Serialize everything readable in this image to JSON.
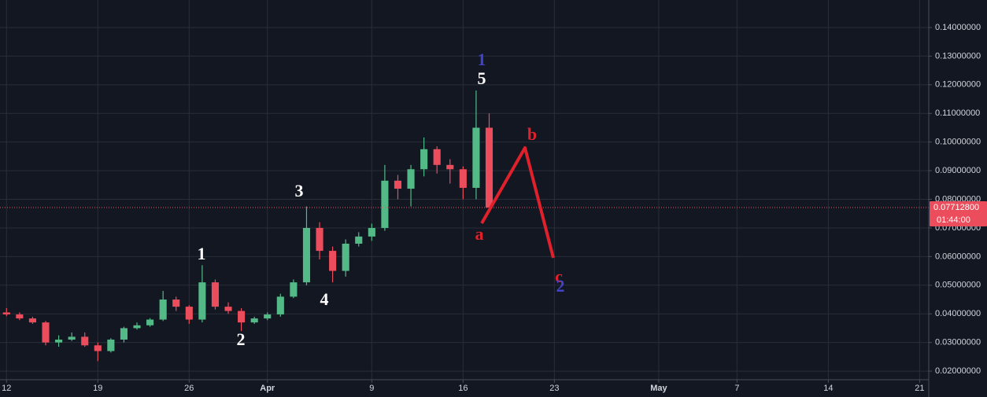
{
  "chart_data": {
    "type": "candlestick",
    "x": [
      0,
      1,
      2,
      3,
      4,
      5,
      6,
      7,
      8,
      9,
      10,
      11,
      12,
      13,
      14,
      15,
      16,
      17,
      18,
      19,
      20,
      21,
      22,
      23,
      24,
      25,
      26,
      27,
      28,
      29,
      30,
      31,
      32,
      33,
      34,
      35,
      36,
      37
    ],
    "open": [
      0.0405,
      0.0398,
      0.0384,
      0.037,
      0.03,
      0.031,
      0.032,
      0.029,
      0.027,
      0.031,
      0.035,
      0.036,
      0.038,
      0.045,
      0.0425,
      0.038,
      0.051,
      0.0425,
      0.041,
      0.037,
      0.0384,
      0.0398,
      0.046,
      0.051,
      0.07,
      0.062,
      0.055,
      0.0645,
      0.067,
      0.07,
      0.0865,
      0.0837,
      0.0905,
      0.0975,
      0.092,
      0.0905,
      0.084,
      0.105
    ],
    "high": [
      0.042,
      0.0405,
      0.039,
      0.0375,
      0.0325,
      0.0335,
      0.0335,
      0.03,
      0.0315,
      0.0355,
      0.037,
      0.0385,
      0.048,
      0.046,
      0.043,
      0.057,
      0.052,
      0.044,
      0.042,
      0.039,
      0.0405,
      0.047,
      0.052,
      0.0775,
      0.072,
      0.0635,
      0.066,
      0.0685,
      0.0715,
      0.092,
      0.0885,
      0.092,
      0.1016,
      0.0985,
      0.094,
      0.0915,
      0.118,
      0.11
    ],
    "low": [
      0.0392,
      0.0378,
      0.0365,
      0.029,
      0.0285,
      0.0305,
      0.0285,
      0.0235,
      0.0265,
      0.03,
      0.0345,
      0.0355,
      0.0375,
      0.041,
      0.0365,
      0.037,
      0.0415,
      0.04,
      0.034,
      0.0365,
      0.0378,
      0.039,
      0.0455,
      0.05,
      0.059,
      0.051,
      0.053,
      0.0635,
      0.0655,
      0.069,
      0.08,
      0.0775,
      0.088,
      0.089,
      0.0855,
      0.08,
      0.08,
      0.0771
    ],
    "close": [
      0.0398,
      0.0384,
      0.037,
      0.03,
      0.031,
      0.032,
      0.029,
      0.027,
      0.031,
      0.035,
      0.036,
      0.038,
      0.045,
      0.0425,
      0.038,
      0.051,
      0.0425,
      0.041,
      0.037,
      0.0384,
      0.0398,
      0.046,
      0.051,
      0.07,
      0.062,
      0.055,
      0.0645,
      0.067,
      0.07,
      0.0865,
      0.0837,
      0.0905,
      0.0975,
      0.092,
      0.0905,
      0.084,
      0.105,
      0.0771
    ],
    "up_color": "#53b987",
    "down_color": "#eb4d5c",
    "xlim": [
      -0.5,
      70.7
    ],
    "xticks": [
      {
        "value": 0,
        "label": "12"
      },
      {
        "value": 7,
        "label": "19"
      },
      {
        "value": 14,
        "label": "26"
      },
      {
        "value": 20,
        "label": "Apr"
      },
      {
        "value": 28,
        "label": "9"
      },
      {
        "value": 35,
        "label": "16"
      },
      {
        "value": 42,
        "label": "23"
      },
      {
        "value": 50,
        "label": "May"
      },
      {
        "value": 56,
        "label": "7"
      },
      {
        "value": 63,
        "label": "14"
      },
      {
        "value": 70,
        "label": "21"
      }
    ],
    "ylim": [
      0.017,
      0.1496
    ],
    "yticks": [
      {
        "value": 0.02,
        "label": "0.02000000"
      },
      {
        "value": 0.03,
        "label": "0.03000000"
      },
      {
        "value": 0.04,
        "label": "0.04000000"
      },
      {
        "value": 0.05,
        "label": "0.05000000"
      },
      {
        "value": 0.06,
        "label": "0.06000000"
      },
      {
        "value": 0.07,
        "label": "0.07000000"
      },
      {
        "value": 0.08,
        "label": "0.08000000"
      },
      {
        "value": 0.09,
        "label": "0.09000000"
      },
      {
        "value": 0.1,
        "label": "0.10000000"
      },
      {
        "value": 0.11,
        "label": "0.11000000"
      },
      {
        "value": 0.12,
        "label": "0.12000000"
      },
      {
        "value": 0.13,
        "label": "0.13000000"
      },
      {
        "value": 0.14,
        "label": "0.14000000"
      }
    ],
    "grid": true,
    "price_line": {
      "value": 0.077128,
      "label": "0.07712800",
      "countdown": "01:44:00",
      "color": "#eb4d5c"
    },
    "annotations": [
      {
        "text": "1",
        "color": "#3f44c8"
      },
      {
        "text": "5",
        "color": "#ffffff"
      },
      {
        "text": "b",
        "color": "#e0212b"
      },
      {
        "text": "3",
        "color": "#ffffff"
      },
      {
        "text": "1",
        "color": "#ffffff"
      },
      {
        "text": "a",
        "color": "#e0212b"
      },
      {
        "text": "c",
        "color": "#e0212b"
      },
      {
        "text": "2",
        "color": "#3f44c8"
      },
      {
        "text": "4",
        "color": "#ffffff"
      },
      {
        "text": "2",
        "color": "#ffffff"
      }
    ]
  }
}
